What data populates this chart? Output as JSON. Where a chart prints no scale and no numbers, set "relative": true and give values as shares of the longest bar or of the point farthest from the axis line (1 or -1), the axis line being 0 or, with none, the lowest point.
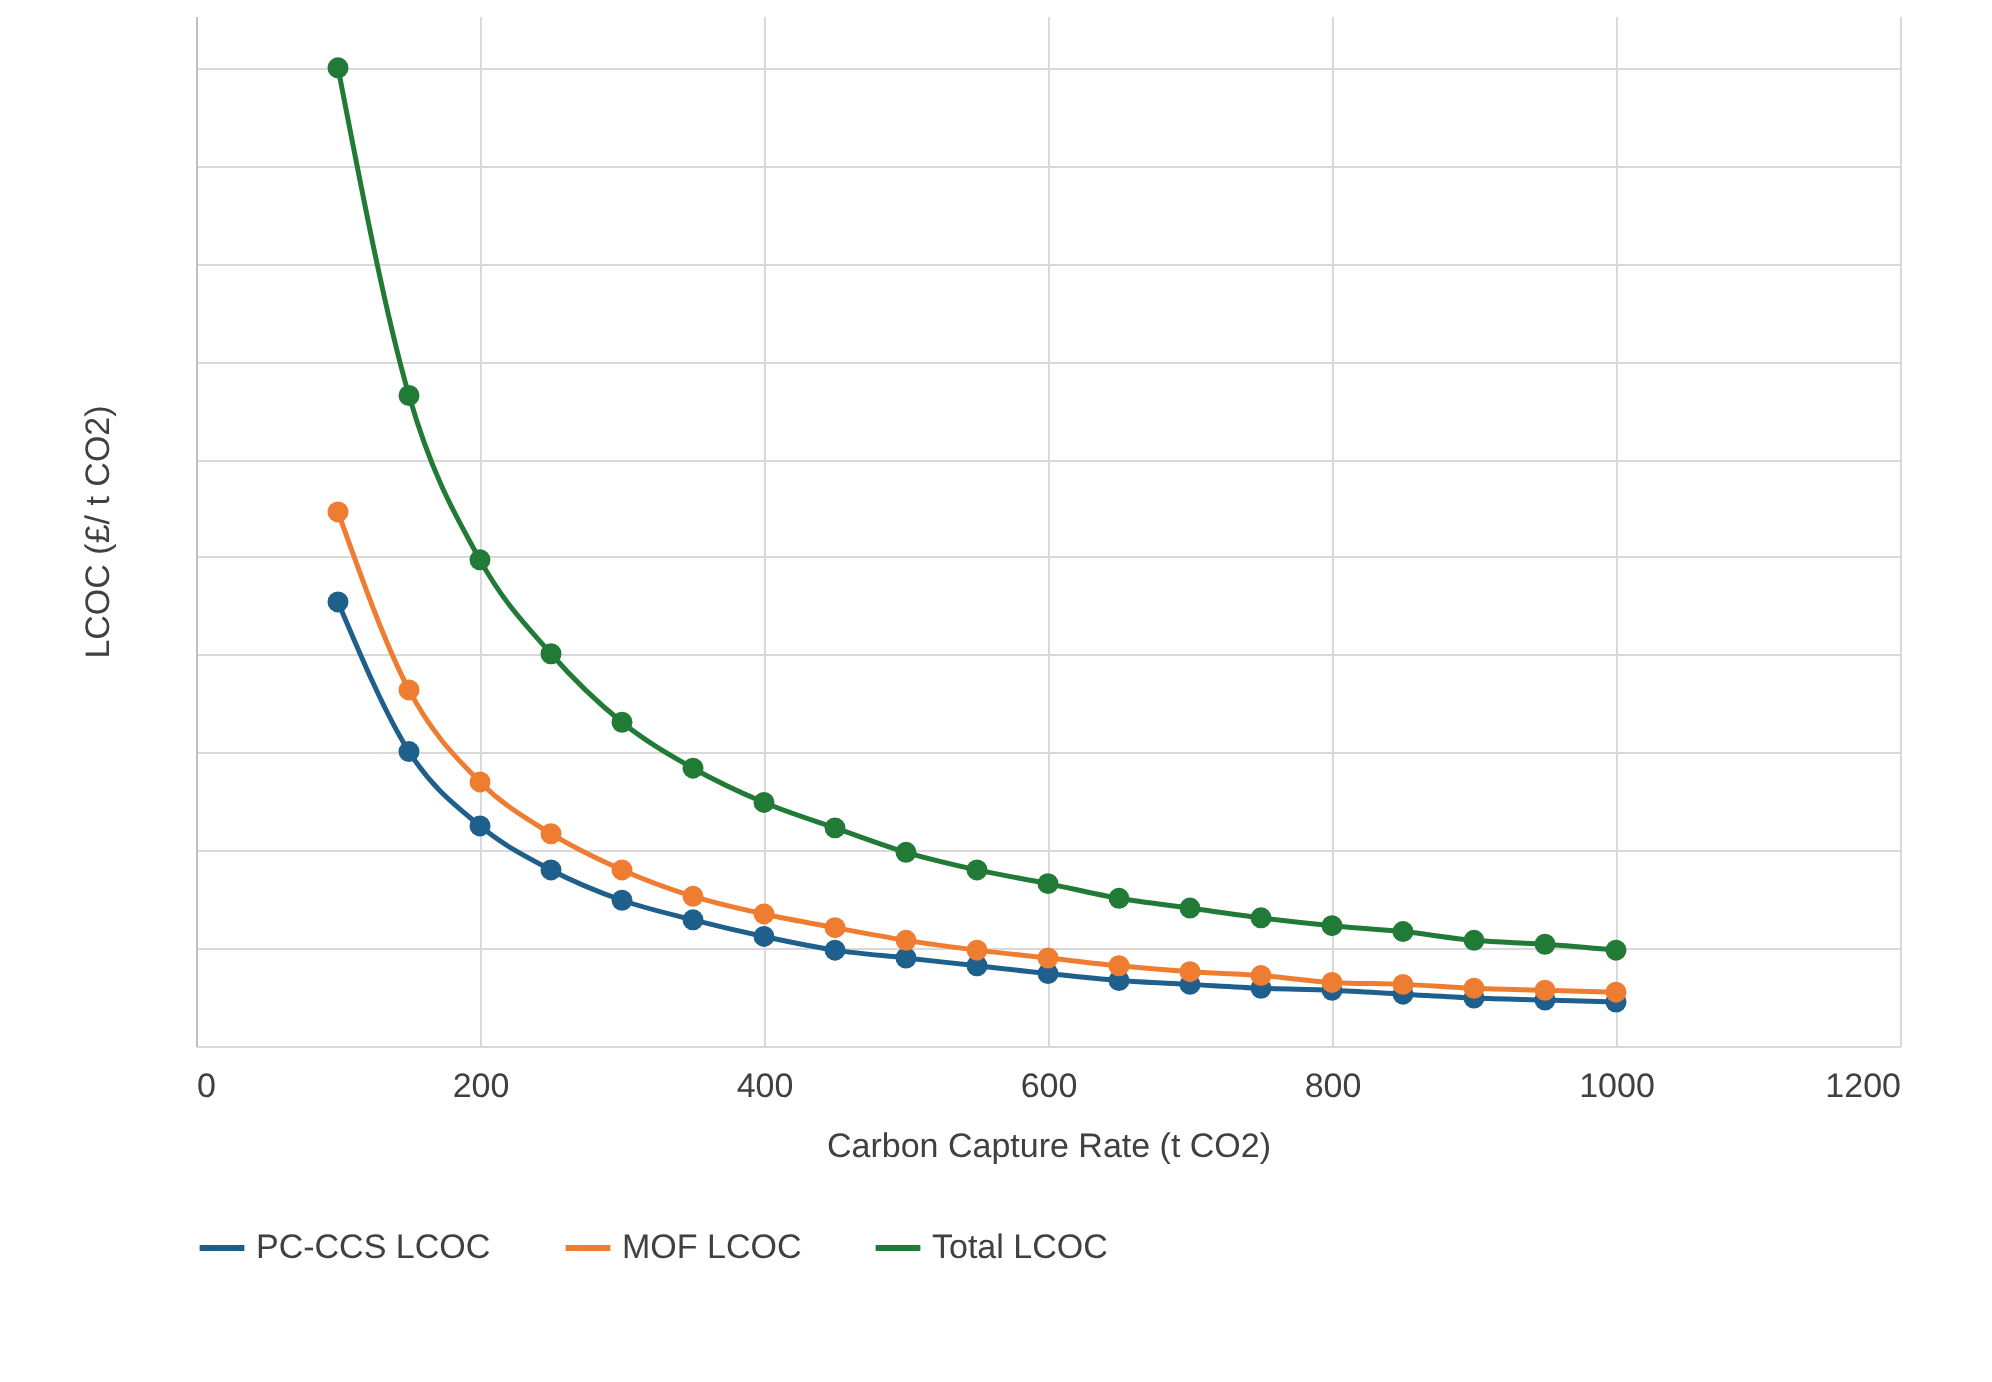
{
  "chart_data": {
    "type": "line",
    "relative": true,
    "xlabel": "Carbon Capture Rate (t CO2)",
    "ylabel": "LCOC (£/ t CO2)",
    "xlim": [
      0,
      1200
    ],
    "xticks": [
      0,
      200,
      400,
      600,
      800,
      1000,
      1200
    ],
    "grid": true,
    "legend": "bottom",
    "marker": "circle",
    "x": [
      100,
      150,
      200,
      250,
      300,
      350,
      400,
      450,
      500,
      550,
      600,
      650,
      700,
      750,
      800,
      850,
      900,
      950,
      1000
    ],
    "series": [
      {
        "name": "PC-CCS LCOC",
        "color": "#1f5f8b",
        "values": [
          0.454,
          0.301,
          0.225,
          0.18,
          0.149,
          0.129,
          0.112,
          0.098,
          0.09,
          0.082,
          0.074,
          0.067,
          0.063,
          0.059,
          0.057,
          0.053,
          0.049,
          0.047,
          0.045
        ]
      },
      {
        "name": "MOF LCOC",
        "color": "#ee7d31",
        "values": [
          0.546,
          0.364,
          0.27,
          0.217,
          0.18,
          0.153,
          0.135,
          0.121,
          0.108,
          0.098,
          0.09,
          0.082,
          0.076,
          0.072,
          0.065,
          0.063,
          0.059,
          0.057,
          0.055
        ]
      },
      {
        "name": "Total LCOC",
        "color": "#217a35",
        "values": [
          1.0,
          0.665,
          0.497,
          0.401,
          0.331,
          0.284,
          0.249,
          0.223,
          0.198,
          0.18,
          0.166,
          0.151,
          0.141,
          0.131,
          0.123,
          0.117,
          0.108,
          0.104,
          0.098
        ]
      }
    ]
  }
}
